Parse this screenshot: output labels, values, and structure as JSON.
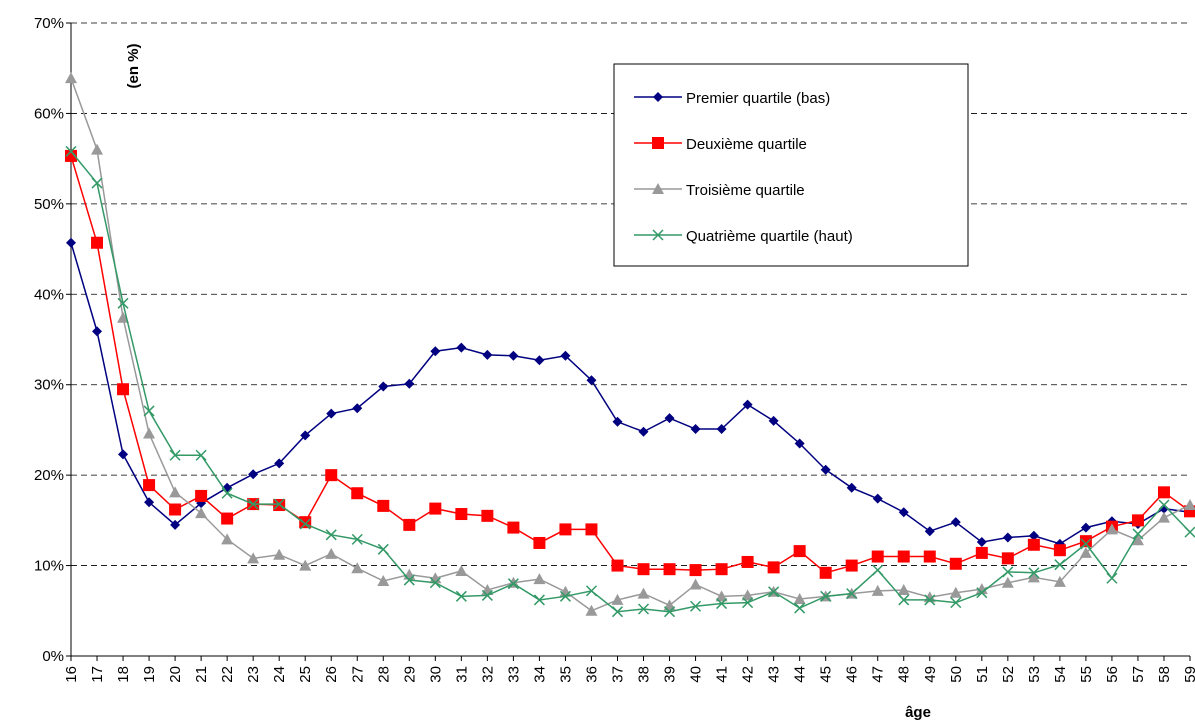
{
  "chart_data": {
    "type": "line",
    "y_label": "(en %)",
    "x_label": "âge",
    "categories": [
      "16",
      "17",
      "18",
      "19",
      "20",
      "21",
      "22",
      "23",
      "24",
      "25",
      "26",
      "27",
      "28",
      "29",
      "30",
      "31",
      "32",
      "33",
      "34",
      "35",
      "36",
      "37",
      "38",
      "39",
      "40",
      "41",
      "42",
      "43",
      "44",
      "45",
      "46",
      "47",
      "48",
      "49",
      "50",
      "51",
      "52",
      "53",
      "54",
      "55",
      "56",
      "57",
      "58",
      "59"
    ],
    "ylim": [
      0,
      70
    ],
    "yticks": [
      {
        "value": 0,
        "label": "0%"
      },
      {
        "value": 10,
        "label": "10%"
      },
      {
        "value": 20,
        "label": "20%"
      },
      {
        "value": 30,
        "label": "30%"
      },
      {
        "value": 40,
        "label": "40%"
      },
      {
        "value": 50,
        "label": "50%"
      },
      {
        "value": 60,
        "label": "60%"
      },
      {
        "value": 70,
        "label": "70%"
      }
    ],
    "grid": true,
    "series": [
      {
        "name": "Premier quartile (bas)",
        "color": "#000080",
        "marker": "diamond",
        "values": [
          45.7,
          35.9,
          22.3,
          17.0,
          14.5,
          16.9,
          18.6,
          20.1,
          21.3,
          24.4,
          26.8,
          27.4,
          29.8,
          30.1,
          33.7,
          34.1,
          33.3,
          33.2,
          32.7,
          33.2,
          30.5,
          25.9,
          24.8,
          26.3,
          25.1,
          25.1,
          27.8,
          26.0,
          23.5,
          20.6,
          18.6,
          17.4,
          15.9,
          13.8,
          14.8,
          12.6,
          13.1,
          13.3,
          12.4,
          14.2,
          14.9,
          14.6,
          16.3,
          15.9
        ]
      },
      {
        "name": "Deuxième quartile",
        "color": "#ff0000",
        "marker": "square",
        "values": [
          55.3,
          45.7,
          29.5,
          18.9,
          16.2,
          17.7,
          15.2,
          16.8,
          16.7,
          14.8,
          20.0,
          18.0,
          16.6,
          14.5,
          16.3,
          15.7,
          15.5,
          14.2,
          12.5,
          14.0,
          14.0,
          10.0,
          9.6,
          9.6,
          9.5,
          9.6,
          10.4,
          9.8,
          11.6,
          9.2,
          10.0,
          11.0,
          11.0,
          11.0,
          10.2,
          11.4,
          10.8,
          12.3,
          11.7,
          12.7,
          14.3,
          15.0,
          18.1,
          16.0
        ]
      },
      {
        "name": "Troisième quartile",
        "color": "#999999",
        "marker": "triangle",
        "values": [
          63.9,
          56.0,
          37.4,
          24.6,
          18.1,
          15.8,
          12.9,
          10.8,
          11.2,
          10.0,
          11.3,
          9.7,
          8.3,
          9.0,
          8.6,
          9.4,
          7.3,
          8.1,
          8.5,
          7.1,
          5.0,
          6.2,
          6.9,
          5.6,
          7.9,
          6.6,
          6.7,
          7.1,
          6.3,
          6.6,
          6.9,
          7.2,
          7.3,
          6.5,
          7.0,
          7.4,
          8.1,
          8.7,
          8.2,
          11.4,
          14.0,
          12.8,
          15.3,
          16.7
        ]
      },
      {
        "name": "Quatrième quartile (haut)",
        "color": "#339966",
        "marker": "x",
        "values": [
          55.8,
          52.3,
          39.0,
          27.1,
          22.2,
          22.2,
          18.0,
          16.8,
          16.8,
          14.6,
          13.4,
          12.9,
          11.8,
          8.4,
          8.1,
          6.6,
          6.7,
          8.0,
          6.2,
          6.6,
          7.2,
          4.9,
          5.2,
          4.9,
          5.5,
          5.8,
          5.9,
          7.1,
          5.3,
          6.6,
          6.9,
          9.5,
          6.2,
          6.2,
          5.9,
          7.0,
          9.3,
          9.2,
          10.1,
          12.4,
          8.6,
          13.5,
          16.7,
          13.7
        ]
      }
    ]
  }
}
